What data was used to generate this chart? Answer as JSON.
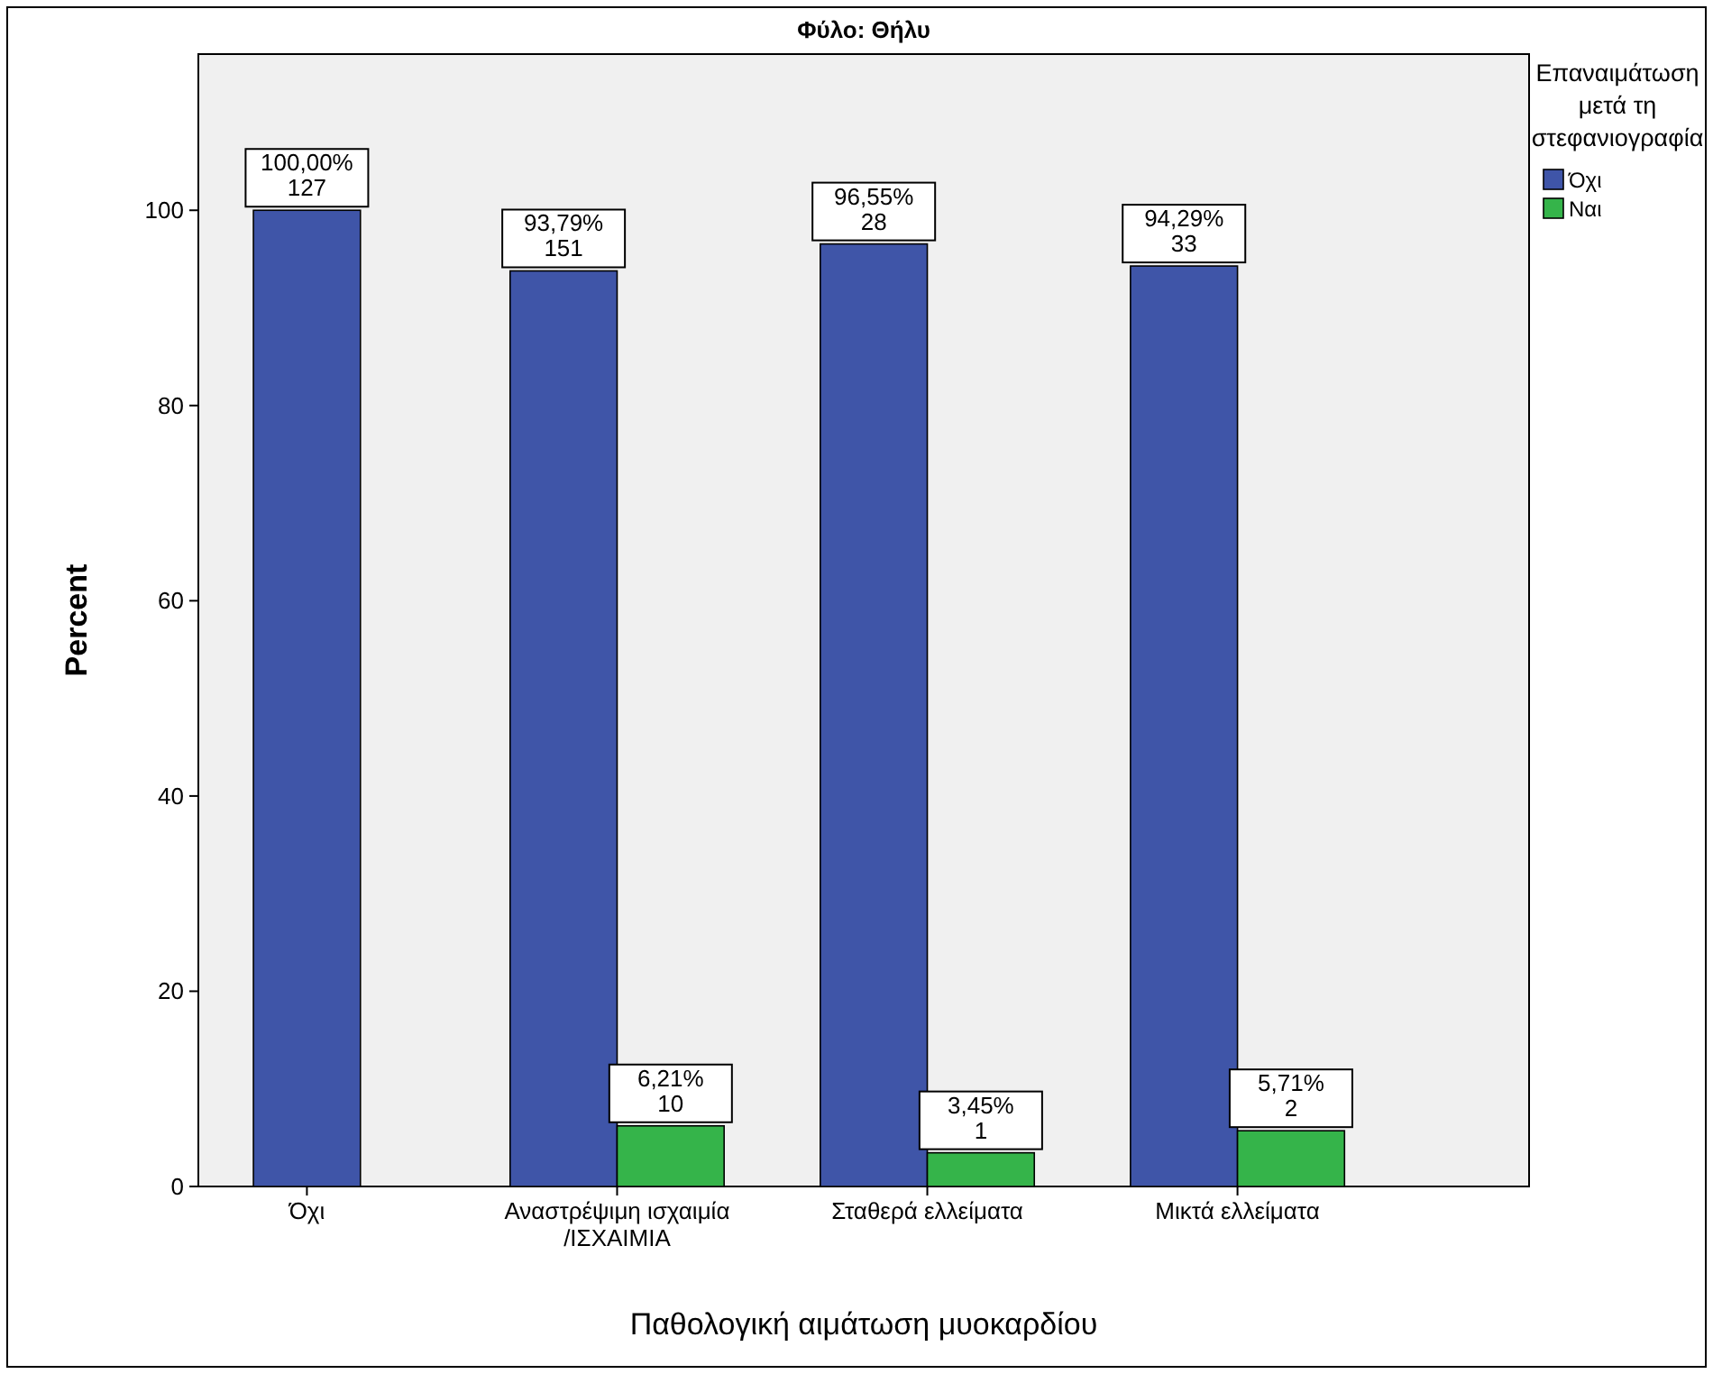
{
  "chart_data": {
    "type": "bar",
    "title": "Φύλο: Θήλυ",
    "xlabel": "Παθολογική αιμάτωση μυοκαρδίου",
    "ylabel": "Percent",
    "legend_title": "Επαναιμάτωση μετά τη στεφανιογραφία",
    "legend": "right",
    "grid": false,
    "categories": [
      "Όχι",
      "Αναστρέψιμη ισχαιμία  /ΙΣΧΑΙΜΙΑ",
      "Σταθερά ελλείματα",
      "Μικτά ελλείματα"
    ],
    "ylim": [
      0,
      116
    ],
    "yticks": [
      0,
      20,
      40,
      60,
      80,
      100
    ],
    "series": [
      {
        "name": "Όχι",
        "color": "#3f55a8",
        "values": [
          100,
          93.79,
          96.55,
          94.29
        ],
        "value_labels": [
          "100,00%\n127",
          "93,79%\n151",
          "96,55%\n28",
          "94,29%\n33"
        ]
      },
      {
        "name": "Ναι",
        "color": "#35b44a",
        "values": [
          null,
          6.21,
          3.45,
          5.71
        ],
        "value_labels": [
          null,
          "6,21%\n10",
          "3,45%\n1",
          "5,71%\n2"
        ]
      }
    ]
  }
}
